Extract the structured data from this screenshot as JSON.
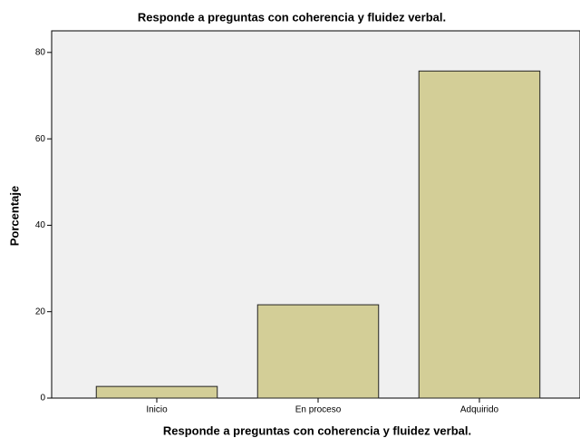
{
  "chart_data": {
    "type": "bar",
    "title": "Responde a preguntas con coherencia y fluidez verbal.",
    "x_label": "Responde a preguntas con coherencia y fluidez verbal.",
    "y_label": "Porcentaje",
    "categories": [
      "Inicio",
      "En proceso",
      "Adquirido"
    ],
    "values": [
      2.7,
      21.6,
      75.7
    ],
    "color": "#d3ce97",
    "ylim": [
      0,
      85
    ],
    "yticks": [
      0,
      20,
      40,
      60,
      80
    ],
    "grid": false
  }
}
